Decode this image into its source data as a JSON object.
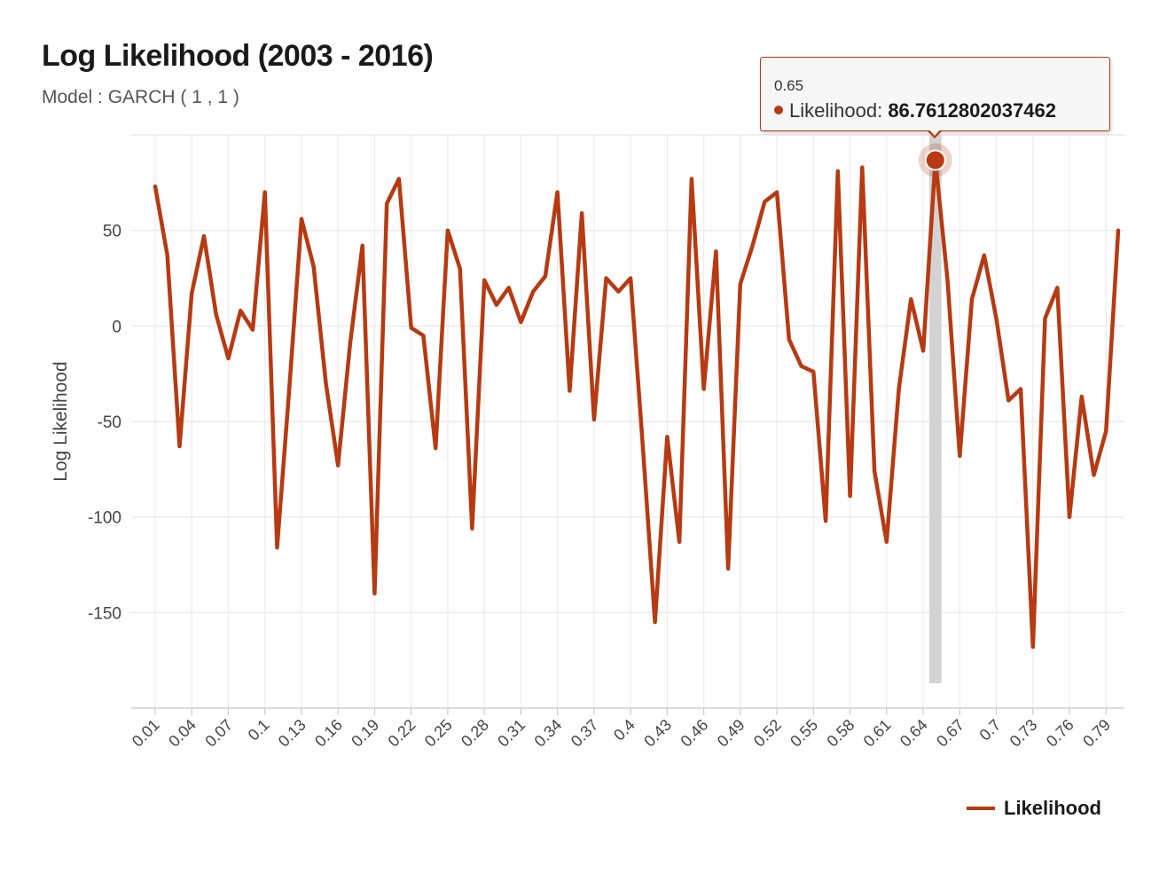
{
  "chart_data": {
    "type": "line",
    "title": "Log Likelihood (2003 - 2016)",
    "subtitle": "Model : GARCH ( 1 , 1 )",
    "ylabel": "Log Likelihood",
    "xlabel": "",
    "ylim": [
      -200,
      100
    ],
    "y_ticks": [
      50,
      0,
      -50,
      -100,
      -150
    ],
    "grid": true,
    "legend_position": "bottom-right",
    "series": [
      {
        "name": "Likelihood",
        "color": "#b73a12",
        "x": [
          0.01,
          0.02,
          0.03,
          0.04,
          0.05,
          0.06,
          0.07,
          0.08,
          0.09,
          0.1,
          0.11,
          0.12,
          0.13,
          0.14,
          0.15,
          0.16,
          0.17,
          0.18,
          0.19,
          0.2,
          0.21,
          0.22,
          0.23,
          0.24,
          0.25,
          0.26,
          0.27,
          0.28,
          0.29,
          0.3,
          0.31,
          0.32,
          0.33,
          0.34,
          0.35,
          0.36,
          0.37,
          0.38,
          0.39,
          0.4,
          0.41,
          0.42,
          0.43,
          0.44,
          0.45,
          0.46,
          0.47,
          0.48,
          0.49,
          0.5,
          0.51,
          0.52,
          0.53,
          0.54,
          0.55,
          0.56,
          0.57,
          0.58,
          0.59,
          0.6,
          0.61,
          0.62,
          0.63,
          0.64,
          0.65,
          0.66,
          0.67,
          0.68,
          0.69,
          0.7,
          0.71,
          0.72,
          0.73,
          0.74,
          0.75,
          0.76,
          0.77,
          0.78,
          0.79,
          0.8
        ],
        "values": [
          73,
          37,
          -63,
          17,
          47,
          6,
          -17,
          8,
          -2,
          70,
          -116,
          -33,
          56,
          31,
          -30,
          -73,
          -9,
          42,
          -140,
          64,
          77,
          -1,
          -5,
          -64,
          50,
          30,
          -106,
          24,
          11,
          20,
          2,
          18,
          26,
          70,
          -34,
          59,
          -49,
          25,
          18,
          25,
          -63,
          -155,
          -58,
          -113,
          77,
          -33,
          39,
          -127,
          22,
          42,
          65,
          70,
          -7,
          -21,
          -24,
          -102,
          81,
          -89,
          83,
          -76,
          -113,
          -33,
          14,
          -13,
          86.7612802037462,
          24,
          -68,
          14,
          37,
          4,
          -39,
          -33,
          -168,
          4,
          20,
          -100,
          -37,
          -78,
          -55,
          50
        ]
      }
    ],
    "x_tick_labels": [
      "0.01",
      "0.04",
      "0.07",
      "0.1",
      "0.13",
      "0.16",
      "0.19",
      "0.22",
      "0.25",
      "0.28",
      "0.31",
      "0.34",
      "0.37",
      "0.4",
      "0.43",
      "0.46",
      "0.49",
      "0.52",
      "0.55",
      "0.58",
      "0.61",
      "0.64",
      "0.67",
      "0.7",
      "0.73",
      "0.76",
      "0.79"
    ],
    "highlight": {
      "x_label": "0.65",
      "series_label": "Likelihood:",
      "value_text": "86.7612802037462"
    }
  }
}
